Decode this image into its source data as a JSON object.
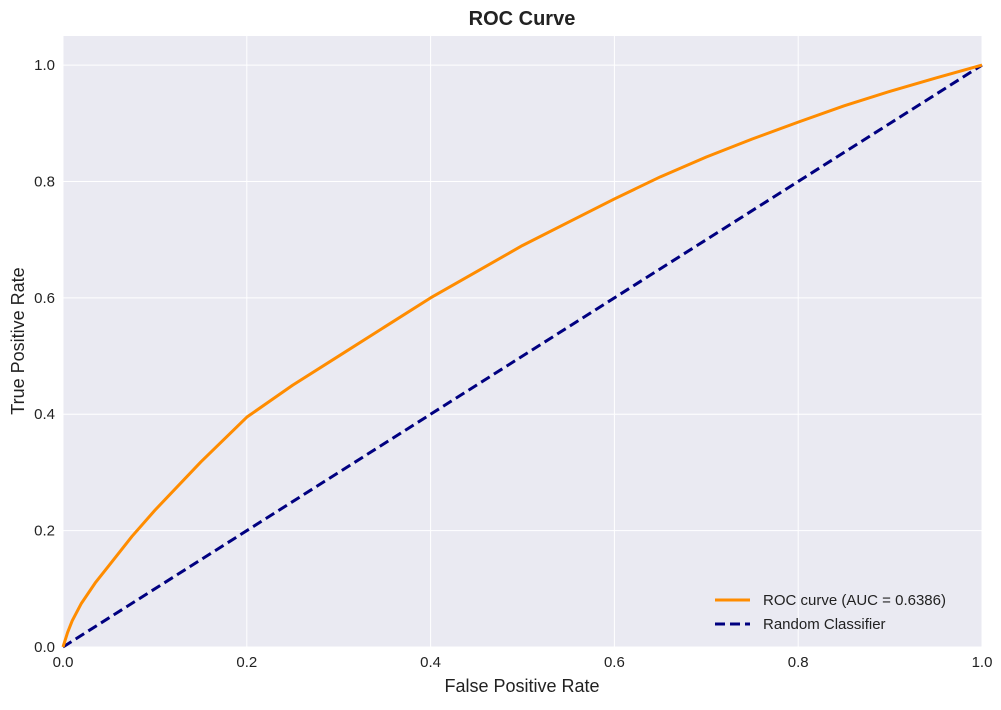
{
  "chart_data": {
    "type": "line",
    "title": "ROC Curve",
    "xlabel": "False Positive Rate",
    "ylabel": "True Positive Rate",
    "xlim": [
      0,
      1
    ],
    "ylim": [
      0,
      1.05
    ],
    "xticks": [
      "0.0",
      "0.2",
      "0.4",
      "0.6",
      "0.8",
      "1.0"
    ],
    "yticks": [
      "0.0",
      "0.2",
      "0.4",
      "0.6",
      "0.8",
      "1.0"
    ],
    "grid": true,
    "legend_placement": "lower-right",
    "series": [
      {
        "name": "ROC curve (AUC = 0.6386)",
        "color": "#ff8c00",
        "style": "solid",
        "x": [
          0,
          0.005,
          0.01,
          0.02,
          0.035,
          0.05,
          0.075,
          0.1,
          0.15,
          0.2,
          0.25,
          0.3,
          0.35,
          0.4,
          0.45,
          0.5,
          0.55,
          0.6,
          0.65,
          0.7,
          0.75,
          0.8,
          0.85,
          0.9,
          0.95,
          1.0
        ],
        "y": [
          0,
          0.025,
          0.045,
          0.075,
          0.11,
          0.14,
          0.19,
          0.235,
          0.318,
          0.395,
          0.45,
          0.5,
          0.55,
          0.6,
          0.645,
          0.69,
          0.73,
          0.77,
          0.808,
          0.842,
          0.873,
          0.902,
          0.93,
          0.955,
          0.978,
          1.0
        ]
      },
      {
        "name": "Random Classifier",
        "color": "#000080",
        "style": "dashed",
        "x": [
          0,
          1
        ],
        "y": [
          0,
          1
        ]
      }
    ]
  }
}
